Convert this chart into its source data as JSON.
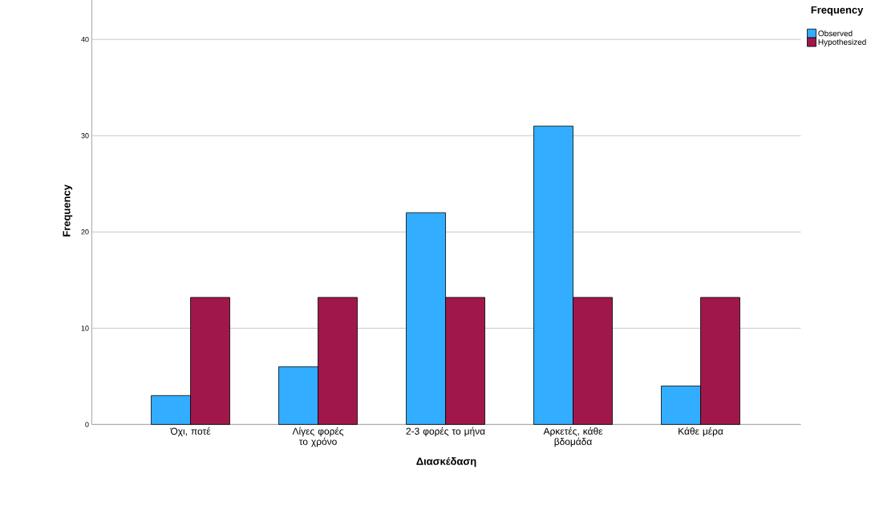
{
  "chart_data": {
    "type": "bar",
    "xlabel": "Διασκέδαση",
    "ylabel": "Frequency",
    "legend_title": "Frequency",
    "categories": [
      "Όχι, ποτέ",
      "Λίγες φορές το χρόνο",
      "2-3 φορές το μήνα",
      "Αρκετές, κάθε βδομάδα",
      "Κάθε μέρα"
    ],
    "series": [
      {
        "name": "Observed",
        "color": "#33adff",
        "values": [
          3,
          6,
          22,
          31,
          4
        ]
      },
      {
        "name": "Hypothesized",
        "color": "#a0184b",
        "values": [
          13.2,
          13.2,
          13.2,
          13.2,
          13.2
        ]
      }
    ],
    "ylim": [
      0,
      44.4
    ],
    "yticks": [
      0,
      10,
      20,
      30,
      40
    ],
    "grid": "y",
    "legend": "top right"
  }
}
